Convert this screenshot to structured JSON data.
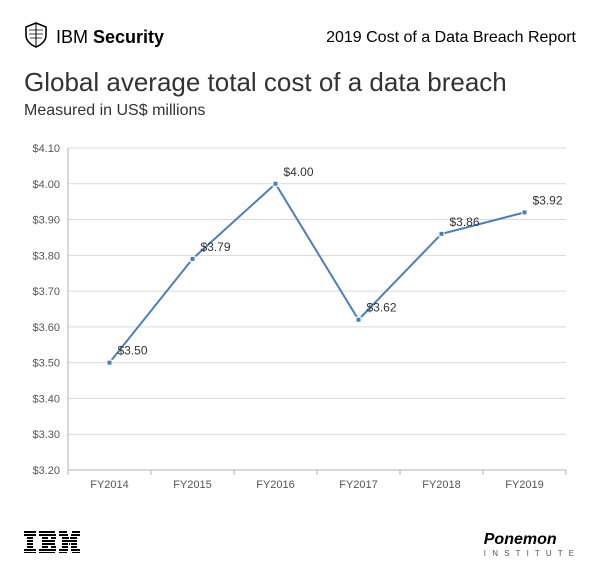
{
  "header": {
    "brand_prefix": "IBM",
    "brand_suffix": "Security",
    "report_title": "2019 Cost of a Data Breach Report"
  },
  "chart": {
    "type": "line",
    "title": "Global average total cost of a data breach",
    "subtitle": "Measured in US$ millions",
    "categories": [
      "FY2014",
      "FY2015",
      "FY2016",
      "FY2017",
      "FY2018",
      "FY2019"
    ],
    "values": [
      3.5,
      3.79,
      4.0,
      3.62,
      3.86,
      3.92
    ],
    "point_labels": [
      "$3.50",
      "$3.79",
      "$4.00",
      "$3.62",
      "$3.86",
      "$3.92"
    ],
    "ylim": [
      3.2,
      4.1
    ],
    "ytick_step": 0.1,
    "ytick_labels": [
      "$3.20",
      "$3.30",
      "$3.40",
      "$3.50",
      "$3.60",
      "$3.70",
      "$3.80",
      "$3.90",
      "$4.00",
      "$4.10"
    ],
    "line_color": "#4a7ebb",
    "marker_fill": "#4a7ebb",
    "marker_stroke": "#ffffff",
    "marker_size": 5,
    "line_width": 2,
    "grid_color": "#d9d9d9",
    "axis_line_color": "#b0b0b0",
    "background_color": "#ffffff",
    "tick_label_color": "#555555",
    "tick_label_fontsize": 11,
    "point_label_color": "#333333",
    "point_label_fontsize": 12,
    "title_fontsize": 26,
    "subtitle_fontsize": 16
  },
  "footer": {
    "ibm_label": "IBM",
    "ponemon_label": "Ponemon",
    "ponemon_sub": "I N S T I T U T E"
  }
}
